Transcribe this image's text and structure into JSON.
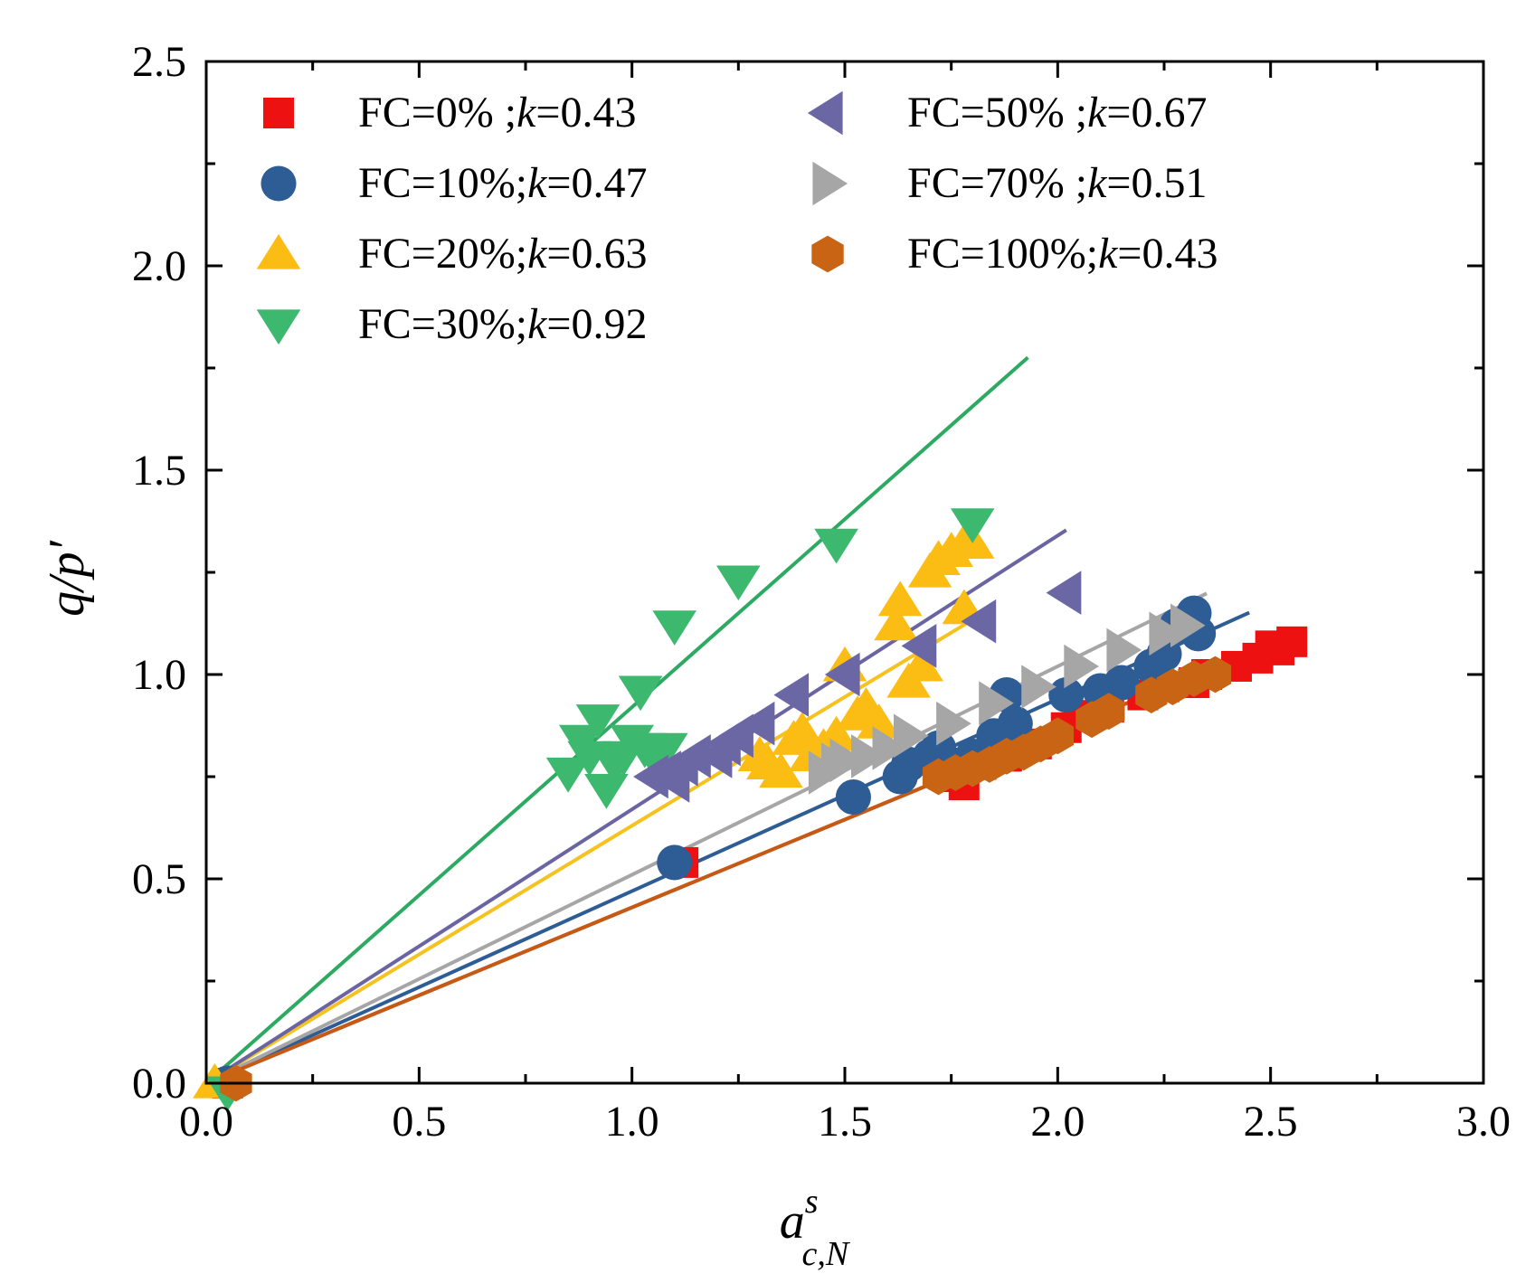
{
  "chart_data": {
    "type": "scatter",
    "title": "",
    "xlabel": {
      "main": "a",
      "sup": "s",
      "sub": "c,N"
    },
    "ylabel": "q/p′",
    "xlim": [
      0,
      3.0
    ],
    "ylim": [
      0,
      2.5
    ],
    "x_ticks": [
      "0.0",
      "0.5",
      "1.0",
      "1.5",
      "2.0",
      "2.5",
      "3.0"
    ],
    "y_ticks": [
      "0.0",
      "0.5",
      "1.0",
      "1.5",
      "2.0",
      "2.5"
    ],
    "grid": false,
    "legend_position": "top-left",
    "series": [
      {
        "name": "FC=0%",
        "legend": {
          "prefix": "FC=0%  ;",
          "k_letter": "k",
          "k_value": "=0.43"
        },
        "k": 0.43,
        "marker": "square",
        "color": "#ee1111",
        "line_color": "#e8241a",
        "fit_range": [
          0,
          2.45
        ],
        "points": [
          [
            0.05,
            0.0
          ],
          [
            1.12,
            0.54
          ],
          [
            1.75,
            0.75
          ],
          [
            1.78,
            0.73
          ],
          [
            1.82,
            0.78
          ],
          [
            1.88,
            0.8
          ],
          [
            1.95,
            0.83
          ],
          [
            2.02,
            0.87
          ],
          [
            2.05,
            0.9
          ],
          [
            2.12,
            0.92
          ],
          [
            2.2,
            0.95
          ],
          [
            2.25,
            0.97
          ],
          [
            2.32,
            0.98
          ],
          [
            2.35,
            1.0
          ],
          [
            2.42,
            1.02
          ],
          [
            2.47,
            1.04
          ],
          [
            2.5,
            1.07
          ],
          [
            2.55,
            1.08
          ],
          [
            2.52,
            1.06
          ]
        ]
      },
      {
        "name": "FC=10%",
        "legend": {
          "prefix": "FC=10%;",
          "k_letter": "k",
          "k_value": "=0.47"
        },
        "k": 0.47,
        "marker": "circle",
        "color": "#2e5c95",
        "line_color": "#2e5c95",
        "fit_range": [
          0,
          2.45
        ],
        "points": [
          [
            0.05,
            0.0
          ],
          [
            1.1,
            0.54
          ],
          [
            1.52,
            0.7
          ],
          [
            1.63,
            0.75
          ],
          [
            1.65,
            0.78
          ],
          [
            1.7,
            0.8
          ],
          [
            1.72,
            0.82
          ],
          [
            1.75,
            0.78
          ],
          [
            1.8,
            0.8
          ],
          [
            1.85,
            0.85
          ],
          [
            1.88,
            0.95
          ],
          [
            1.9,
            0.88
          ],
          [
            2.02,
            0.95
          ],
          [
            2.1,
            0.96
          ],
          [
            2.15,
            0.98
          ],
          [
            2.22,
            1.02
          ],
          [
            2.25,
            1.05
          ],
          [
            2.28,
            1.12
          ],
          [
            2.32,
            1.15
          ],
          [
            2.33,
            1.1
          ]
        ]
      },
      {
        "name": "FC=20%",
        "legend": {
          "prefix": "FC=20%;",
          "k_letter": "k",
          "k_value": "=0.63"
        },
        "k": 0.63,
        "marker": "triangle-up",
        "color": "#fbbd14",
        "line_color": "#f6c21f",
        "fit_range": [
          0,
          1.8
        ],
        "points": [
          [
            0.02,
            0.0
          ],
          [
            1.3,
            0.8
          ],
          [
            1.32,
            0.78
          ],
          [
            1.35,
            0.76
          ],
          [
            1.38,
            0.84
          ],
          [
            1.4,
            0.86
          ],
          [
            1.42,
            0.8
          ],
          [
            1.45,
            0.82
          ],
          [
            1.48,
            0.85
          ],
          [
            1.5,
            1.02
          ],
          [
            1.53,
            0.9
          ],
          [
            1.55,
            0.92
          ],
          [
            1.58,
            0.88
          ],
          [
            1.62,
            1.12
          ],
          [
            1.63,
            1.18
          ],
          [
            1.65,
            0.98
          ],
          [
            1.68,
            1.02
          ],
          [
            1.7,
            1.25
          ],
          [
            1.72,
            1.28
          ],
          [
            1.75,
            1.3
          ],
          [
            1.78,
            1.32
          ],
          [
            1.8,
            1.32
          ],
          [
            1.78,
            1.16
          ]
        ]
      },
      {
        "name": "FC=30%",
        "legend": {
          "prefix": "FC=30%;",
          "k_letter": "k",
          "k_value": "=0.92"
        },
        "k": 0.92,
        "marker": "triangle-down",
        "color": "#3cb96e",
        "line_color": "#2daa62",
        "fit_range": [
          0,
          1.93
        ],
        "points": [
          [
            0.05,
            -0.02
          ],
          [
            0.85,
            0.76
          ],
          [
            0.88,
            0.84
          ],
          [
            0.9,
            0.8
          ],
          [
            0.92,
            0.89
          ],
          [
            0.94,
            0.72
          ],
          [
            0.96,
            0.78
          ],
          [
            0.98,
            0.8
          ],
          [
            1.0,
            0.84
          ],
          [
            1.02,
            0.96
          ],
          [
            1.03,
            0.82
          ],
          [
            1.05,
            0.8
          ],
          [
            1.08,
            0.82
          ],
          [
            1.1,
            1.12
          ],
          [
            1.25,
            1.23
          ],
          [
            1.48,
            1.32
          ],
          [
            1.8,
            1.37
          ]
        ]
      },
      {
        "name": "FC=50%",
        "legend": {
          "prefix": "FC=50%  ;",
          "k_letter": "k",
          "k_value": "=0.67"
        },
        "k": 0.67,
        "marker": "triangle-left",
        "color": "#6a67a4",
        "line_color": "#6a64a2",
        "fit_range": [
          0,
          2.02
        ],
        "points": [
          [
            1.05,
            0.75
          ],
          [
            1.08,
            0.76
          ],
          [
            1.1,
            0.74
          ],
          [
            1.12,
            0.78
          ],
          [
            1.15,
            0.8
          ],
          [
            1.2,
            0.8
          ],
          [
            1.22,
            0.83
          ],
          [
            1.25,
            0.85
          ],
          [
            1.3,
            0.88
          ],
          [
            1.38,
            0.95
          ],
          [
            1.5,
            1.0
          ],
          [
            1.68,
            1.07
          ],
          [
            1.82,
            1.13
          ],
          [
            2.02,
            1.2
          ]
        ]
      },
      {
        "name": "FC=70%",
        "legend": {
          "prefix": "FC=70%  ;",
          "k_letter": "k",
          "k_value": "=0.51"
        },
        "k": 0.51,
        "marker": "triangle-right",
        "color": "#a6a6a6",
        "line_color": "#a6a6a6",
        "fit_range": [
          0,
          2.35
        ],
        "points": [
          [
            1.45,
            0.76
          ],
          [
            1.48,
            0.78
          ],
          [
            1.5,
            0.79
          ],
          [
            1.55,
            0.8
          ],
          [
            1.6,
            0.82
          ],
          [
            1.65,
            0.85
          ],
          [
            1.75,
            0.88
          ],
          [
            1.85,
            0.93
          ],
          [
            1.95,
            0.97
          ],
          [
            2.05,
            1.02
          ],
          [
            2.15,
            1.06
          ],
          [
            2.25,
            1.1
          ],
          [
            2.3,
            1.12
          ]
        ]
      },
      {
        "name": "FC=100%",
        "legend": {
          "prefix": "FC=100%;",
          "k_letter": "k",
          "k_value": "=0.43"
        },
        "k": 0.43,
        "marker": "hexagon",
        "color": "#c86414",
        "line_color": "#c45a14",
        "fit_range": [
          0,
          2.35
        ],
        "points": [
          [
            0.07,
            0.0
          ],
          [
            1.72,
            0.75
          ],
          [
            1.76,
            0.76
          ],
          [
            1.8,
            0.77
          ],
          [
            1.84,
            0.78
          ],
          [
            1.88,
            0.8
          ],
          [
            1.92,
            0.81
          ],
          [
            1.96,
            0.83
          ],
          [
            2.0,
            0.85
          ],
          [
            2.08,
            0.89
          ],
          [
            2.12,
            0.91
          ],
          [
            2.22,
            0.95
          ],
          [
            2.27,
            0.97
          ],
          [
            2.32,
            0.99
          ],
          [
            2.37,
            1.0
          ]
        ]
      }
    ]
  }
}
